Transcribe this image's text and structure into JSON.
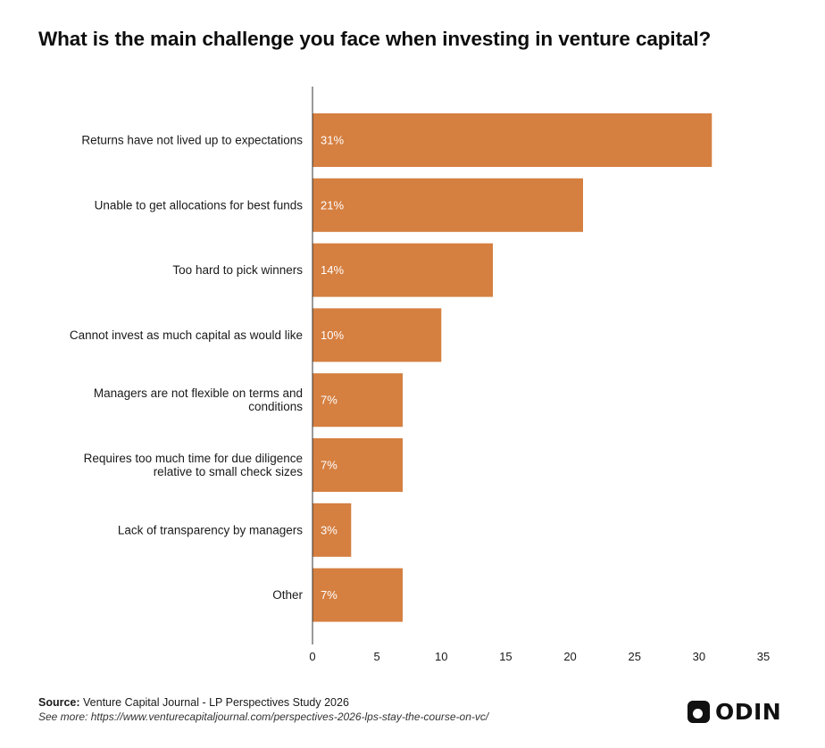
{
  "chart_data": {
    "type": "bar",
    "orientation": "horizontal",
    "title": "What is the main challenge you face when investing in venture capital?",
    "xlabel": "",
    "ylabel": "",
    "categories": [
      "Returns have not lived up to expectations",
      "Unable to get allocations for best funds",
      "Too hard to pick winners",
      "Cannot invest as much capital as would like",
      "Managers are not flexible on terms and conditions",
      "Requires too much time for due diligence relative to small check sizes",
      "Lack of transparency by managers",
      "Other"
    ],
    "category_lines": [
      [
        "Returns have not lived up to expectations"
      ],
      [
        "Unable to get allocations for best funds"
      ],
      [
        "Too hard to pick winners"
      ],
      [
        "Cannot invest as much capital as would like"
      ],
      [
        "Managers are not flexible on terms and",
        "conditions"
      ],
      [
        "Requires too much time for due diligence",
        "relative to small check sizes"
      ],
      [
        "Lack of transparency by managers"
      ],
      [
        "Other"
      ]
    ],
    "values": [
      31,
      21,
      14,
      10,
      7,
      7,
      3,
      7
    ],
    "value_labels": [
      "31%",
      "21%",
      "14%",
      "10%",
      "7%",
      "7%",
      "3%",
      "7%"
    ],
    "xlim": [
      0,
      35
    ],
    "xticks": [
      0,
      5,
      10,
      15,
      20,
      25,
      30,
      35
    ],
    "grid": false,
    "legend": "none",
    "bar_color": "#d57f40",
    "value_label_color": "#ffffff"
  },
  "footer": {
    "source_label": "Source:",
    "source_text": "Venture Capital Journal - LP Perspectives Study 2026",
    "see_more": "See more: https://www.venturecapitaljournal.com/perspectives-2026-lps-stay-the-course-on-vc/"
  },
  "logo": {
    "text": "ODIN",
    "icon": "odin-logo-icon"
  }
}
